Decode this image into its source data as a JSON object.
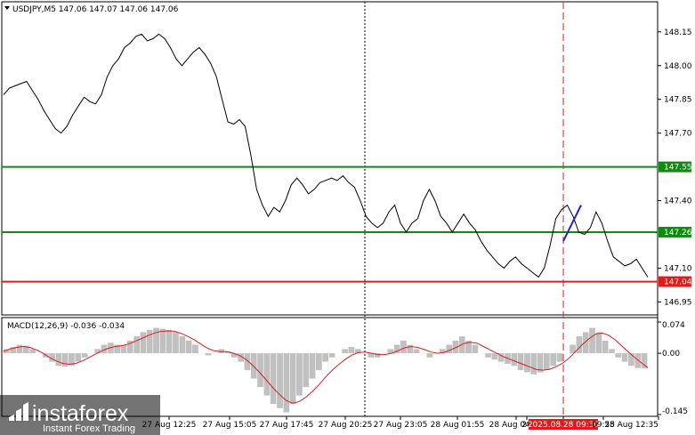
{
  "chart_data": {
    "type": "line",
    "title": "USDJPY,M5  147.06 147.07 147.06 147.06",
    "price_axis": {
      "ylim": [
        146.9,
        148.26
      ],
      "ticks": [
        "148.15",
        "148.00",
        "147.85",
        "147.70",
        "147.40",
        "147.10",
        "146.95"
      ]
    },
    "levels": [
      {
        "value": 147.55,
        "label": "147.55",
        "color": "#118a11"
      },
      {
        "value": 147.26,
        "label": "147.26",
        "color": "#118a11"
      },
      {
        "value": 147.04,
        "label": "147.04",
        "color": "#e01b1b"
      }
    ],
    "price_series": [
      147.87,
      147.9,
      147.91,
      147.92,
      147.93,
      147.89,
      147.85,
      147.8,
      147.76,
      147.72,
      147.7,
      147.73,
      147.78,
      147.82,
      147.86,
      147.84,
      147.83,
      147.87,
      147.95,
      148.0,
      148.03,
      148.08,
      148.1,
      148.13,
      148.14,
      148.11,
      148.12,
      148.14,
      148.12,
      148.08,
      148.03,
      148.0,
      148.03,
      148.06,
      148.08,
      148.05,
      148.01,
      147.95,
      147.85,
      147.75,
      147.74,
      147.76,
      147.73,
      147.6,
      147.45,
      147.38,
      147.33,
      147.37,
      147.35,
      147.4,
      147.47,
      147.5,
      147.47,
      147.43,
      147.45,
      147.48,
      147.49,
      147.5,
      147.49,
      147.51,
      147.48,
      147.46,
      147.4,
      147.33,
      147.3,
      147.28,
      147.3,
      147.35,
      147.38,
      147.3,
      147.26,
      147.3,
      147.32,
      147.4,
      147.45,
      147.4,
      147.33,
      147.3,
      147.26,
      147.3,
      147.34,
      147.3,
      147.27,
      147.22,
      147.18,
      147.15,
      147.12,
      147.1,
      147.13,
      147.15,
      147.12,
      147.1,
      147.08,
      147.06,
      147.1,
      147.2,
      147.32,
      147.36,
      147.38,
      147.33,
      147.26,
      147.25,
      147.28,
      147.35,
      147.3,
      147.22,
      147.15,
      147.13,
      147.11,
      147.12,
      147.14,
      147.1,
      147.06
    ],
    "impulse_line": {
      "from": 147.22,
      "to": 147.38,
      "color": "#2222cc"
    },
    "macd": {
      "label": "MACD(12,26,9) -0.036 -0.034",
      "ylim": [
        -0.145,
        0.074
      ],
      "ticks": [
        "0.074",
        "0.00",
        "-0.145"
      ],
      "hist_color": "#c0c0c0",
      "signal_color": "#e01b1b",
      "histogram": [
        0.01,
        0.015,
        0.02,
        0.018,
        0.01,
        0.0,
        -0.01,
        -0.02,
        -0.03,
        -0.032,
        -0.03,
        -0.02,
        -0.01,
        0.0,
        0.01,
        0.02,
        0.025,
        0.02,
        0.02,
        0.03,
        0.04,
        0.05,
        0.055,
        0.06,
        0.058,
        0.055,
        0.05,
        0.04,
        0.03,
        0.02,
        0.0,
        -0.005,
        0.0,
        0.01,
        0.005,
        -0.01,
        -0.02,
        -0.04,
        -0.06,
        -0.08,
        -0.1,
        -0.12,
        -0.13,
        -0.14,
        -0.12,
        -0.1,
        -0.08,
        -0.06,
        -0.04,
        -0.02,
        -0.01,
        0.0,
        0.01,
        0.015,
        0.01,
        0.0,
        -0.01,
        -0.01,
        0.0,
        0.01,
        0.02,
        0.03,
        0.02,
        0.01,
        0.0,
        -0.01,
        0.0,
        0.01,
        0.02,
        0.03,
        0.04,
        0.03,
        0.02,
        0.0,
        -0.01,
        -0.015,
        -0.02,
        -0.025,
        -0.03,
        -0.04,
        -0.045,
        -0.05,
        -0.045,
        -0.04,
        -0.03,
        -0.02,
        0.0,
        0.02,
        0.04,
        0.05,
        0.06,
        0.05,
        0.03,
        0.01,
        -0.01,
        -0.02,
        -0.03,
        -0.035,
        -0.036
      ],
      "signal": [
        0.005,
        0.01,
        0.014,
        0.016,
        0.014,
        0.008,
        0.0,
        -0.01,
        -0.018,
        -0.024,
        -0.026,
        -0.024,
        -0.018,
        -0.01,
        -0.002,
        0.006,
        0.012,
        0.016,
        0.018,
        0.022,
        0.028,
        0.035,
        0.042,
        0.048,
        0.052,
        0.053,
        0.052,
        0.047,
        0.04,
        0.032,
        0.022,
        0.012,
        0.006,
        0.004,
        0.004,
        0.0,
        -0.006,
        -0.016,
        -0.03,
        -0.046,
        -0.064,
        -0.082,
        -0.098,
        -0.112,
        -0.118,
        -0.114,
        -0.104,
        -0.09,
        -0.074,
        -0.056,
        -0.04,
        -0.026,
        -0.014,
        -0.004,
        0.002,
        0.003,
        0.0,
        -0.003,
        -0.003,
        0.0,
        0.006,
        0.013,
        0.016,
        0.014,
        0.009,
        0.003,
        0.0,
        0.002,
        0.008,
        0.015,
        0.023,
        0.026,
        0.024,
        0.016,
        0.008,
        0.0,
        -0.008,
        -0.014,
        -0.02,
        -0.026,
        -0.032,
        -0.038,
        -0.04,
        -0.038,
        -0.032,
        -0.024,
        -0.012,
        0.004,
        0.02,
        0.034,
        0.045,
        0.048,
        0.043,
        0.032,
        0.018,
        0.004,
        -0.01,
        -0.022,
        -0.034
      ]
    },
    "time_axis": [
      "27 Aug 12:25",
      "27 Aug 15:05",
      "27 Aug 17:45",
      "27 Aug 20:25",
      "27 Aug 23:05",
      "28 Aug 01:55",
      "28 Aug 04:35",
      "28",
      "2025.08.28 09:30",
      "09:55",
      "28 Aug 12:35"
    ],
    "highlight_time": "2025.08.28 09:30",
    "watermark": {
      "brand": "instaforex",
      "tagline": "Instant Forex Trading"
    }
  }
}
